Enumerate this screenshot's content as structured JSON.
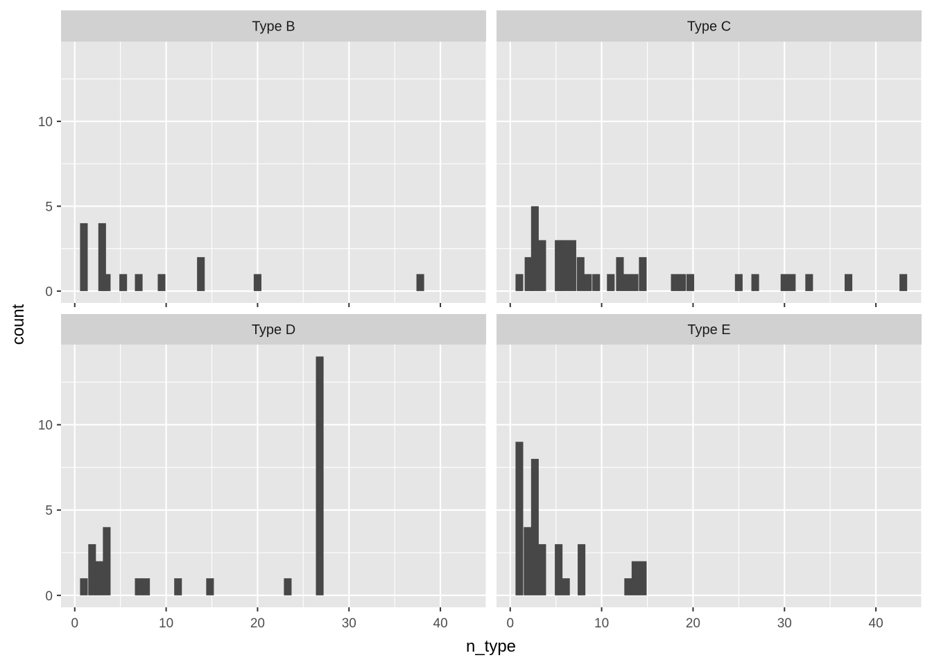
{
  "chart_data": {
    "type": "bar",
    "subtype": "histogram",
    "layout": "facet_wrap 2x2",
    "xlabel": "n_type",
    "ylabel": "count",
    "xlim": [
      -1.5,
      45
    ],
    "ylim": [
      -0.7,
      14.7
    ],
    "x_ticks": [
      0,
      10,
      20,
      30,
      40
    ],
    "y_ticks": [
      0,
      5,
      10
    ],
    "grid": true,
    "panel_background": "#e6e6e6",
    "strip_background": "#d1d1d1",
    "bar_color": "#474747",
    "grid_color": "#ffffff",
    "bin_width": 0.84,
    "panels": [
      {
        "name": "Type B",
        "bins": [
          {
            "x": 1,
            "count": 4
          },
          {
            "x": 3,
            "count": 4
          },
          {
            "x": 3.5,
            "count": 1
          },
          {
            "x": 5.3,
            "count": 1
          },
          {
            "x": 7,
            "count": 1
          },
          {
            "x": 9.5,
            "count": 1
          },
          {
            "x": 13.8,
            "count": 2
          },
          {
            "x": 20,
            "count": 1
          },
          {
            "x": 37.8,
            "count": 1
          }
        ]
      },
      {
        "name": "Type C",
        "bins": [
          {
            "x": 1,
            "count": 1
          },
          {
            "x": 2,
            "count": 2
          },
          {
            "x": 2.7,
            "count": 5
          },
          {
            "x": 3.5,
            "count": 3
          },
          {
            "x": 5.3,
            "count": 3
          },
          {
            "x": 6,
            "count": 3
          },
          {
            "x": 6.8,
            "count": 3
          },
          {
            "x": 7.7,
            "count": 2
          },
          {
            "x": 8.5,
            "count": 1
          },
          {
            "x": 9.4,
            "count": 1
          },
          {
            "x": 11,
            "count": 1
          },
          {
            "x": 12,
            "count": 2
          },
          {
            "x": 12.8,
            "count": 1
          },
          {
            "x": 13.6,
            "count": 1
          },
          {
            "x": 14.5,
            "count": 2
          },
          {
            "x": 18,
            "count": 1
          },
          {
            "x": 18.8,
            "count": 1
          },
          {
            "x": 19.7,
            "count": 1
          },
          {
            "x": 25,
            "count": 1
          },
          {
            "x": 26.8,
            "count": 1
          },
          {
            "x": 30,
            "count": 1
          },
          {
            "x": 30.8,
            "count": 1
          },
          {
            "x": 32.7,
            "count": 1
          },
          {
            "x": 37,
            "count": 1
          },
          {
            "x": 43,
            "count": 1
          }
        ]
      },
      {
        "name": "Type D",
        "bins": [
          {
            "x": 1,
            "count": 1
          },
          {
            "x": 1.9,
            "count": 3
          },
          {
            "x": 2.7,
            "count": 2
          },
          {
            "x": 3.5,
            "count": 4
          },
          {
            "x": 7,
            "count": 1
          },
          {
            "x": 7.8,
            "count": 1
          },
          {
            "x": 11.3,
            "count": 1
          },
          {
            "x": 14.8,
            "count": 1
          },
          {
            "x": 23.3,
            "count": 1
          },
          {
            "x": 26.8,
            "count": 14
          }
        ]
      },
      {
        "name": "Type E",
        "bins": [
          {
            "x": 1,
            "count": 9
          },
          {
            "x": 1.9,
            "count": 4
          },
          {
            "x": 2.7,
            "count": 8
          },
          {
            "x": 3.5,
            "count": 3
          },
          {
            "x": 5.3,
            "count": 3
          },
          {
            "x": 6.1,
            "count": 1
          },
          {
            "x": 7.8,
            "count": 3
          },
          {
            "x": 12.9,
            "count": 1
          },
          {
            "x": 13.7,
            "count": 2
          },
          {
            "x": 14.5,
            "count": 2
          }
        ]
      }
    ]
  }
}
